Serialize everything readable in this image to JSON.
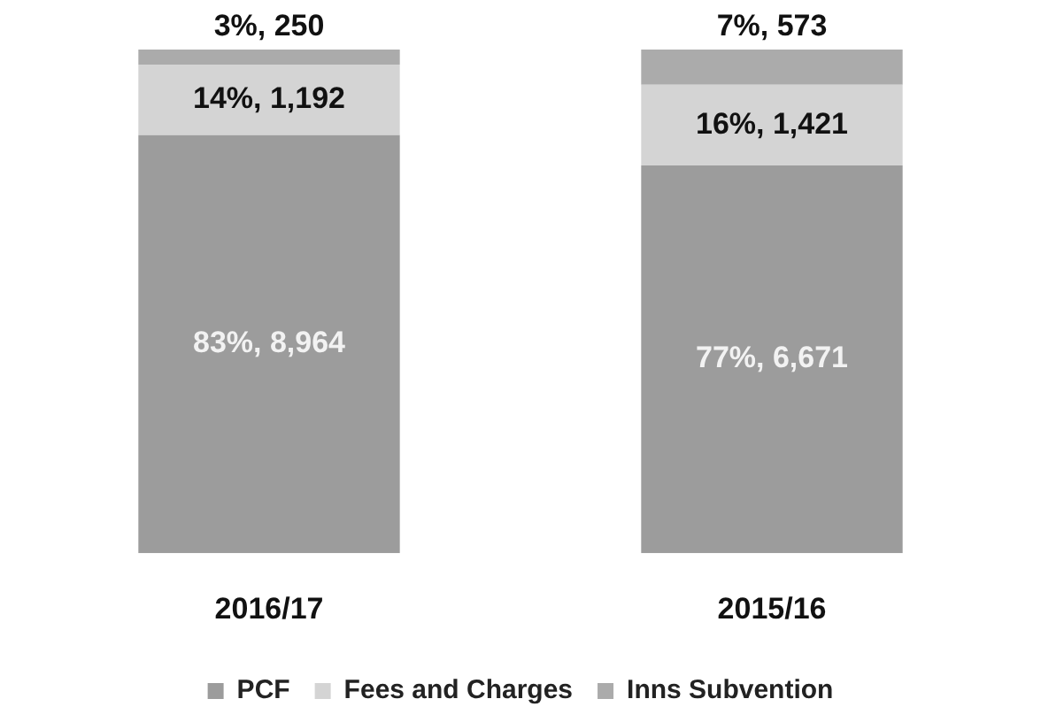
{
  "chart_data": {
    "type": "bar",
    "stacked": true,
    "categories": [
      "2016/17",
      "2015/16"
    ],
    "series": [
      {
        "name": "PCF",
        "color": "#9c9c9c",
        "values": [
          83,
          77
        ],
        "value_labels": [
          "83%, 8,964",
          "77%, 6,671"
        ]
      },
      {
        "name": "Fees and Charges",
        "color": "#d4d4d4",
        "values": [
          14,
          16
        ],
        "value_labels": [
          "14%, 1,192",
          "16%, 1,421"
        ]
      },
      {
        "name": "Inns Subvention",
        "color": "#ababab",
        "values": [
          3,
          7
        ],
        "value_labels": [
          "3%, 250",
          "7%, 573"
        ]
      }
    ],
    "legend": "bottom",
    "grid": false
  }
}
